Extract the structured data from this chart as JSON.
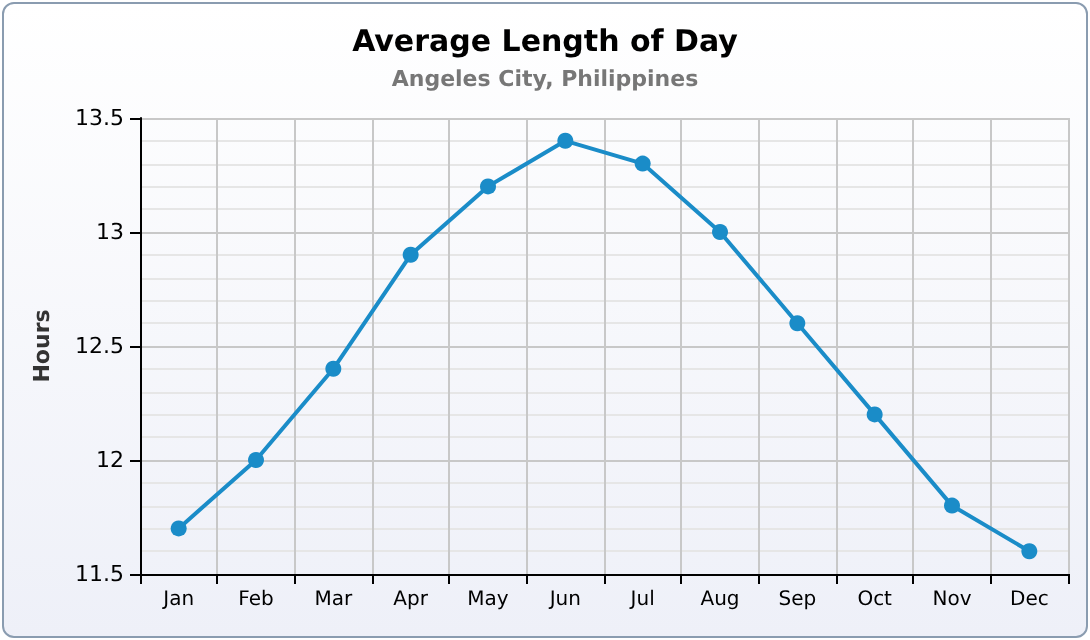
{
  "chart_data": {
    "type": "line",
    "title": "Average Length of Day",
    "subtitle": "Angeles City, Philippines",
    "ylabel": "Hours",
    "categories": [
      "Jan",
      "Feb",
      "Mar",
      "Apr",
      "May",
      "Jun",
      "Jul",
      "Aug",
      "Sep",
      "Oct",
      "Nov",
      "Dec"
    ],
    "series": [
      {
        "color": "#1a8cc8",
        "values": [
          11.7,
          12.0,
          12.4,
          12.9,
          13.2,
          13.4,
          13.3,
          13.0,
          12.6,
          12.2,
          11.8,
          11.6
        ]
      }
    ],
    "ylim": [
      11.5,
      13.5
    ],
    "yticks": [
      11.5,
      12,
      12.5,
      13,
      13.5
    ],
    "grid": true,
    "marker": "circle",
    "line_style": "solid"
  }
}
